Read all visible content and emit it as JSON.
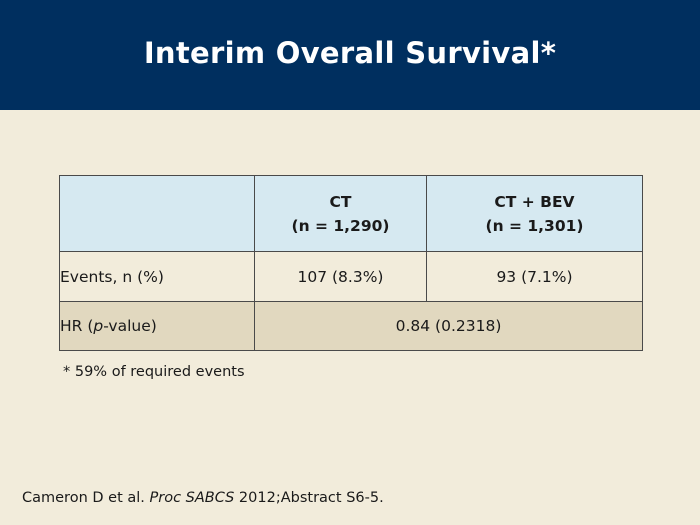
{
  "slide": {
    "title": "Interim Overall Survival*"
  },
  "table": {
    "header": {
      "col0": "",
      "col1_line1": "CT",
      "col1_line2": "(n = 1,290)",
      "col2_line1": "CT + BEV",
      "col2_line2": "(n = 1,301)"
    },
    "rows": [
      {
        "label": "Events, n (%)",
        "ct": "107 (8.3%)",
        "ct_bev": "93 (7.1%)"
      }
    ],
    "hr_row": {
      "label_pre": "HR (",
      "label_italic": "p",
      "label_post": "-value)",
      "value": "0.84 (0.2318)"
    }
  },
  "footnote": "* 59% of required events",
  "citation": {
    "pre": "Cameron D et al. ",
    "italic": "Proc SABCS",
    "post": " 2012;Abstract S6-5."
  },
  "colors": {
    "header_bg": "#002f5f",
    "slide_bg": "#f2ecdb",
    "table_header_bg": "#d6e9f1",
    "hr_row_bg": "#e1d8bf"
  }
}
